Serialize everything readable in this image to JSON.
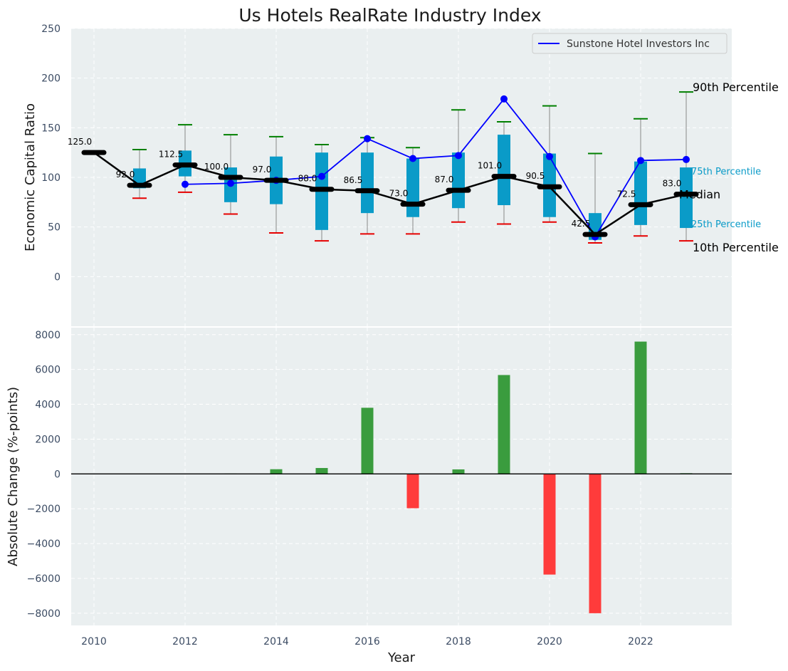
{
  "colors": {
    "panel_bg": "#eaeff0",
    "grid": "#ffffff",
    "box": "#0a9bc8",
    "whisker_low": "#e60000",
    "whisker_high": "#008000",
    "whisker_line": "#888888",
    "median": "#000000",
    "company": "#0000ff",
    "bar_pos": "#3a9c3e",
    "bar_neg": "#ff3b3b",
    "tick_text": "#3b4b63",
    "pct_small": "#0a9bc8"
  },
  "chart_data": [
    {
      "type": "box",
      "title": "Us Hotels RealRate Industry Index",
      "xlabel": "",
      "ylabel": "Economic Capital Ratio",
      "ylim": [
        -50,
        250
      ],
      "yticks": [
        0,
        50,
        100,
        150,
        200,
        250
      ],
      "xlim": [
        2009.5,
        2024
      ],
      "grid": true,
      "years": [
        2010,
        2011,
        2012,
        2013,
        2014,
        2015,
        2016,
        2017,
        2018,
        2019,
        2020,
        2021,
        2022,
        2023
      ],
      "p10": [
        null,
        79,
        85,
        63,
        44,
        36,
        43,
        43,
        55,
        53,
        55,
        34,
        41,
        36
      ],
      "p25": [
        null,
        89,
        101,
        75,
        73,
        47,
        64,
        60,
        69,
        72,
        60,
        37,
        52,
        49
      ],
      "median": [
        125.0,
        92.0,
        112.5,
        100.0,
        97.0,
        88.0,
        86.5,
        73.0,
        87.0,
        101.0,
        90.5,
        42.5,
        72.5,
        83.0
      ],
      "p75": [
        null,
        109,
        127,
        110,
        121,
        125,
        125,
        119,
        125,
        143,
        124,
        64,
        116,
        110
      ],
      "p90": [
        null,
        128,
        153,
        143,
        141,
        133,
        140,
        130,
        168,
        156,
        172,
        124,
        159,
        186
      ],
      "median_labels": [
        "125.0",
        "92.0",
        "112.5",
        "100.0",
        "97.0",
        "88.0",
        "86.5",
        "73.0",
        "87.0",
        "101.0",
        "90.5",
        "42.5",
        "72.5",
        "83.0"
      ],
      "series": [
        {
          "name": "Sunstone Hotel Investors Inc",
          "x": [
            2012,
            2013,
            2014,
            2015,
            2016,
            2017,
            2018,
            2019,
            2020,
            2021,
            2022,
            2023
          ],
          "values": [
            93,
            94,
            97,
            101,
            139,
            119,
            122,
            179,
            121,
            40,
            117,
            118
          ]
        }
      ],
      "legend": {
        "position": "top-right",
        "entries": [
          "Sunstone Hotel Investors Inc"
        ]
      },
      "annotations": {
        "p90": "90th Percentile",
        "p75": "75th Percentile",
        "median": "Median",
        "p25": "25th Percentile",
        "p10": "10th Percentile"
      }
    },
    {
      "type": "bar",
      "xlabel": "Year",
      "ylabel": "Absolute Change (%-points)",
      "ylim": [
        -8700,
        8400
      ],
      "yticks": [
        -8000,
        -6000,
        -4000,
        -2000,
        0,
        2000,
        4000,
        6000,
        8000
      ],
      "ytick_labels": [
        "−8000",
        "−6000",
        "−4000",
        "−2000",
        "0",
        "2000",
        "4000",
        "6000",
        "8000"
      ],
      "xticks": [
        2010,
        2012,
        2014,
        2016,
        2018,
        2020,
        2022
      ],
      "xtick_labels": [
        "2010",
        "2012",
        "2014",
        "2016",
        "2018",
        "2020",
        "2022"
      ],
      "grid": true,
      "categories": [
        2013,
        2014,
        2015,
        2016,
        2017,
        2018,
        2019,
        2020,
        2021,
        2022,
        2023
      ],
      "values": [
        20,
        270,
        340,
        3800,
        -1970,
        260,
        5680,
        -5780,
        -8000,
        7600,
        40
      ]
    }
  ]
}
